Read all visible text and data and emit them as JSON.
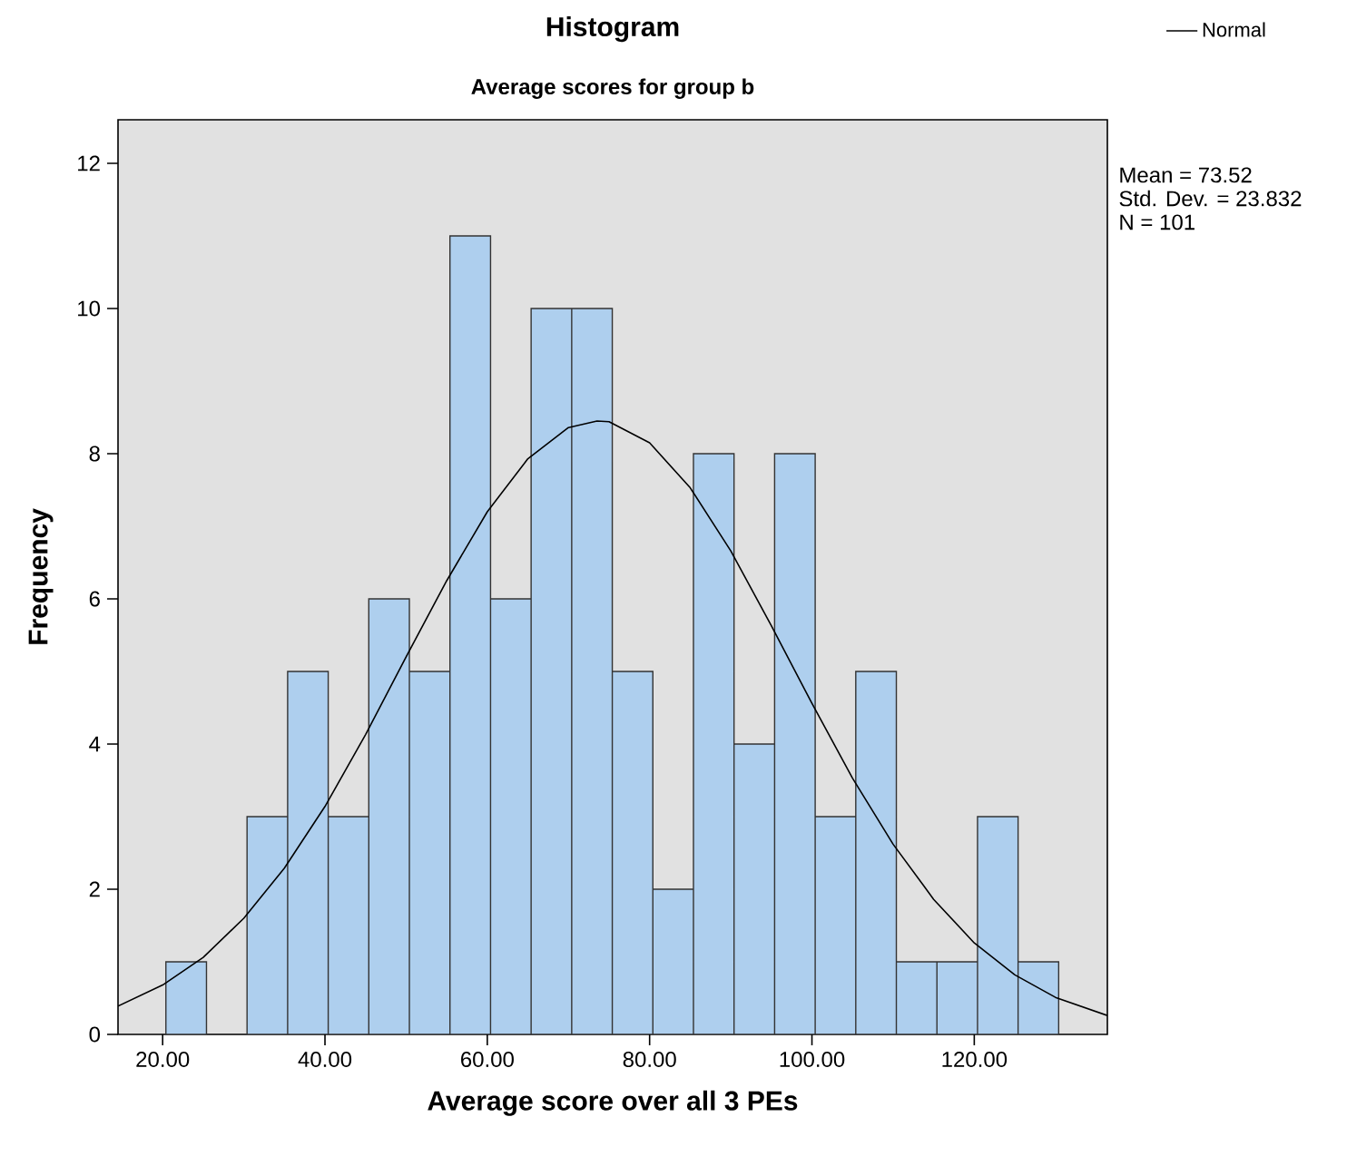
{
  "chart_data": {
    "type": "histogram",
    "title": "Histogram",
    "subtitle": "Average scores for group b",
    "xlabel": "Average score over all 3 PEs",
    "ylabel": "Frequency",
    "bins": [
      20.4,
      25.4,
      30.4,
      35.4,
      40.4,
      45.4,
      50.4,
      55.4,
      60.4,
      65.4,
      70.4,
      75.4,
      80.4,
      85.4,
      90.4,
      95.4,
      100.4,
      105.4,
      110.4,
      115.4,
      120.4,
      125.4,
      130.4
    ],
    "values": [
      1,
      0,
      3,
      5,
      3,
      6,
      5,
      11,
      6,
      10,
      10,
      5,
      2,
      8,
      4,
      8,
      3,
      5,
      1,
      1,
      3,
      1
    ],
    "color": "#aecfee",
    "series": [
      {
        "name": "Normal",
        "type": "line",
        "color": "#000000",
        "x": [
          14.5,
          20,
          25,
          30,
          35,
          40,
          45,
          50,
          55,
          60,
          65,
          70,
          73.52,
          75,
          80,
          85,
          90,
          95,
          100,
          105,
          110,
          115,
          120,
          125,
          130,
          136.4
        ],
        "values": [
          0.39,
          0.68,
          1.06,
          1.6,
          2.29,
          3.14,
          4.13,
          5.2,
          6.25,
          7.2,
          7.93,
          8.36,
          8.45,
          8.44,
          8.15,
          7.53,
          6.66,
          5.63,
          4.56,
          3.53,
          2.62,
          1.86,
          1.26,
          0.82,
          0.51,
          0.26
        ]
      }
    ],
    "xlim": [
      14.5,
      136.4
    ],
    "ylim": [
      0,
      12.6
    ],
    "xticks": [
      {
        "value": 20,
        "label": "20.00"
      },
      {
        "value": 40,
        "label": "40.00"
      },
      {
        "value": 60,
        "label": "60.00"
      },
      {
        "value": 80,
        "label": "80.00"
      },
      {
        "value": 100,
        "label": "100.00"
      },
      {
        "value": 120,
        "label": "120.00"
      }
    ],
    "yticks": [
      0,
      2,
      4,
      6,
      8,
      10,
      12
    ],
    "grid": false,
    "legend": "top right",
    "annotations": [
      "Mean = 73.52",
      "Std. Dev. = 23.832",
      "N = 101"
    ]
  }
}
